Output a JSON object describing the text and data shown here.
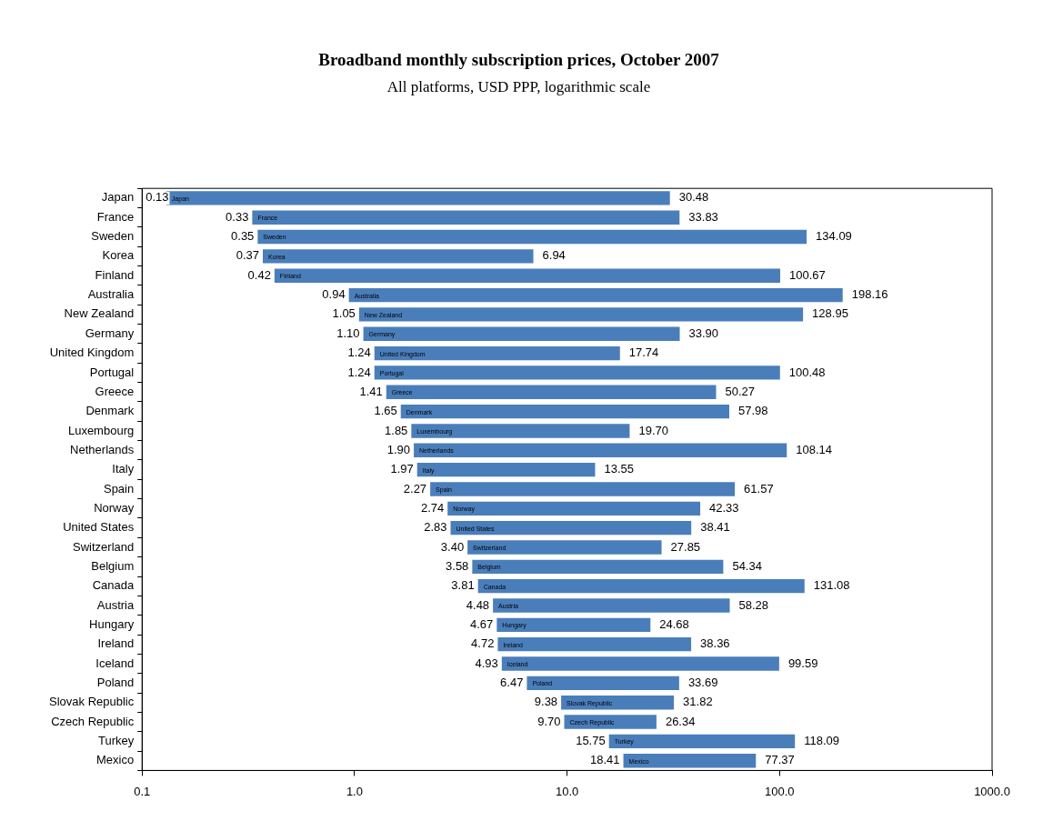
{
  "chart_data": {
    "type": "bar",
    "orientation": "horizontal",
    "log": "x",
    "title": "Broadband monthly subscription prices, October 2007",
    "subtitle": "All platforms, USD PPP, logarithmic scale",
    "categories": [
      "Japan",
      "France",
      "Sweden",
      "Korea",
      "Finland",
      "Australia",
      "New Zealand",
      "Germany",
      "United Kingdom",
      "Portugal",
      "Greece",
      "Denmark",
      "Luxembourg",
      "Netherlands",
      "Italy",
      "Spain",
      "Norway",
      "United States",
      "Switzerland",
      "Belgium",
      "Canada",
      "Austria",
      "Hungary",
      "Ireland",
      "Iceland",
      "Poland",
      "Slovak Republic",
      "Czech Republic",
      "Turkey",
      "Mexico"
    ],
    "base": [
      0.13,
      0.33,
      0.35,
      0.37,
      0.42,
      0.94,
      1.05,
      1.1,
      1.24,
      1.24,
      1.41,
      1.65,
      1.85,
      1.9,
      1.97,
      2.27,
      2.74,
      2.83,
      3.4,
      3.58,
      3.81,
      4.48,
      4.67,
      4.72,
      4.93,
      6.47,
      9.38,
      9.7,
      15.75,
      18.41
    ],
    "values": [
      30.35,
      33.5,
      133.74,
      6.57,
      100.25,
      197.22,
      127.9,
      32.8,
      16.5,
      99.24,
      48.86,
      56.33,
      17.85,
      106.24,
      11.58,
      59.3,
      39.59,
      35.58,
      24.45,
      50.76,
      127.27,
      53.8,
      20.01,
      33.64,
      94.66,
      27.22,
      22.44,
      16.64,
      102.34,
      58.96
    ],
    "value_labels": [
      "30.48",
      "33.83",
      "134.09",
      "6.94",
      "100.67",
      "198.16",
      "128.95",
      "33.90",
      "17.74",
      "100.48",
      "50.27",
      "57.98",
      "19.70",
      "108.14",
      "13.55",
      "61.57",
      "42.33",
      "38.41",
      "27.85",
      "54.34",
      "131.08",
      "58.28",
      "24.68",
      "38.36",
      "99.59",
      "33.69",
      "31.82",
      "26.34",
      "118.09",
      "77.37"
    ],
    "annotations": [
      {
        "text": "0.13",
        "x": 0.13,
        "y": "Japan"
      },
      {
        "text": "0.33",
        "x": 0.33,
        "y": "France"
      },
      {
        "text": "0.35",
        "x": 0.35,
        "y": "Sweden"
      },
      {
        "text": "0.37",
        "x": 0.37,
        "y": "Korea"
      },
      {
        "text": "0.42",
        "x": 0.42,
        "y": "Finland"
      },
      {
        "text": "0.94",
        "x": 0.94,
        "y": "Australia"
      },
      {
        "text": "1.05",
        "x": 1.05,
        "y": "New Zealand"
      },
      {
        "text": "1.10",
        "x": 1.1,
        "y": "Germany"
      },
      {
        "text": "1.24",
        "x": 1.24,
        "y": "United Kingdom"
      },
      {
        "text": "1.24",
        "x": 1.24,
        "y": "Portugal"
      },
      {
        "text": "1.41",
        "x": 1.41,
        "y": "Greece"
      },
      {
        "text": "1.65",
        "x": 1.65,
        "y": "Denmark"
      },
      {
        "text": "1.85",
        "x": 1.85,
        "y": "Luxembourg"
      },
      {
        "text": "1.90",
        "x": 1.9,
        "y": "Netherlands"
      },
      {
        "text": "1.97",
        "x": 1.97,
        "y": "Italy"
      },
      {
        "text": "2.27",
        "x": 2.27,
        "y": "Spain"
      },
      {
        "text": "2.74",
        "x": 2.74,
        "y": "Norway"
      },
      {
        "text": "2.83",
        "x": 2.83,
        "y": "United States"
      },
      {
        "text": "3.40",
        "x": 3.4,
        "y": "Switzerland"
      },
      {
        "text": "3.58",
        "x": 3.58,
        "y": "Belgium"
      },
      {
        "text": "3.81",
        "x": 3.81,
        "y": "Canada"
      },
      {
        "text": "4.48",
        "x": 4.48,
        "y": "Austria"
      },
      {
        "text": "4.67",
        "x": 4.67,
        "y": "Hungary"
      },
      {
        "text": "4.72",
        "x": 4.72,
        "y": "Ireland"
      },
      {
        "text": "4.93",
        "x": 4.93,
        "y": "Iceland"
      },
      {
        "text": "6.47",
        "x": 6.47,
        "y": "Poland"
      },
      {
        "text": "9.38",
        "x": 9.38,
        "y": "Slovak Republic"
      },
      {
        "text": "9.70",
        "x": 9.7,
        "y": "Czech Republic"
      },
      {
        "text": "15.75",
        "x": 15.75,
        "y": "Turkey"
      },
      {
        "text": "18.41",
        "x": 18.41,
        "y": "Mexico"
      }
    ],
    "color": "#4a7ebb",
    "xlim": [
      0.1,
      1000
    ],
    "xticks": [
      0.1,
      {
        "value": 1,
        "label": "1.0"
      },
      {
        "value": 10,
        "label": "10.0"
      },
      {
        "value": 100,
        "label": "100.0"
      },
      {
        "value": 1000,
        "label": "1000.0"
      }
    ],
    "grid": false,
    "legend": false
  }
}
